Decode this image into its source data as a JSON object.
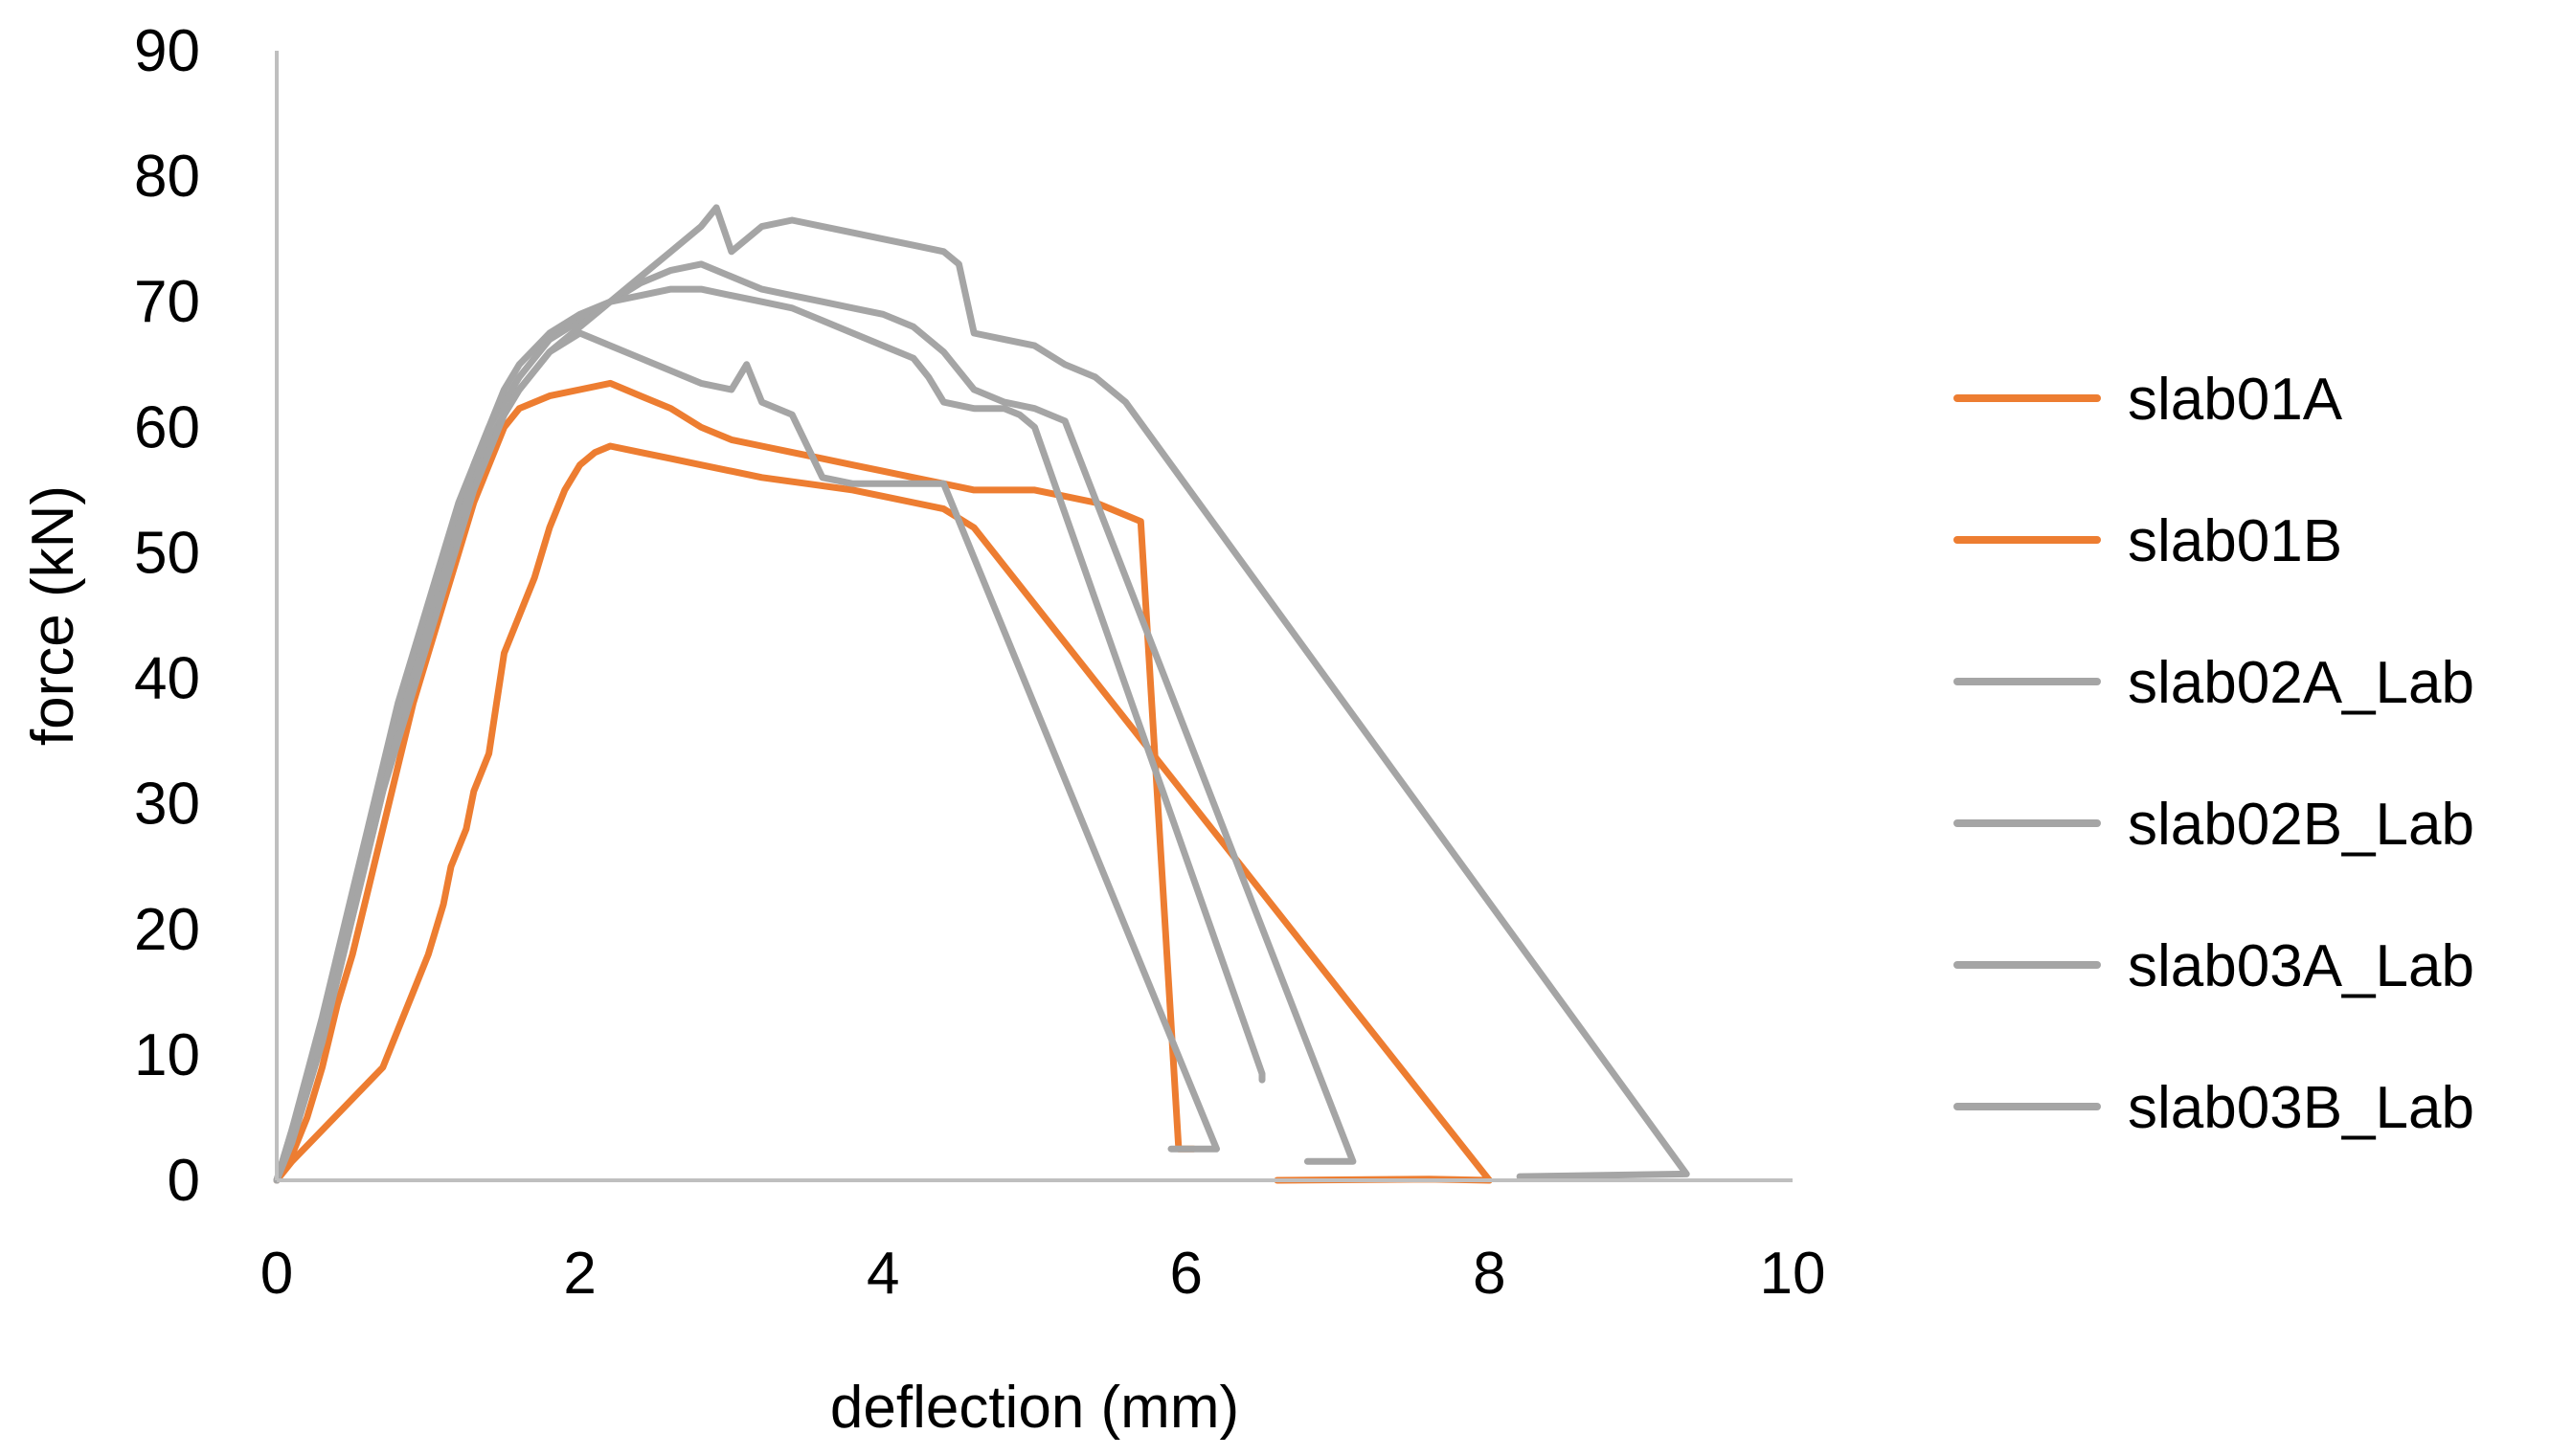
{
  "chart_data": {
    "type": "line",
    "title": "",
    "xlabel": "deflection (mm)",
    "ylabel": "force (kN)",
    "xlim": [
      0,
      10
    ],
    "ylim": [
      0,
      90
    ],
    "xticks": [
      0,
      2,
      4,
      6,
      8,
      10
    ],
    "yticks": [
      0,
      10,
      20,
      30,
      40,
      50,
      60,
      70,
      80,
      90
    ],
    "grid": false,
    "legend_position": "right",
    "series": [
      {
        "name": "slab01A",
        "color": "#ED7D31",
        "points": [
          [
            0,
            0
          ],
          [
            0.1,
            1.5
          ],
          [
            0.3,
            4
          ],
          [
            0.5,
            6.5
          ],
          [
            0.7,
            9
          ],
          [
            0.8,
            12
          ],
          [
            0.9,
            15
          ],
          [
            1.0,
            18
          ],
          [
            1.1,
            22
          ],
          [
            1.15,
            25
          ],
          [
            1.25,
            28
          ],
          [
            1.3,
            31
          ],
          [
            1.4,
            34
          ],
          [
            1.45,
            38
          ],
          [
            1.5,
            42
          ],
          [
            1.6,
            45
          ],
          [
            1.7,
            48
          ],
          [
            1.8,
            52
          ],
          [
            1.9,
            55
          ],
          [
            2.0,
            57
          ],
          [
            2.1,
            58
          ],
          [
            2.2,
            58.5
          ],
          [
            2.4,
            58
          ],
          [
            2.6,
            57.5
          ],
          [
            2.8,
            57
          ],
          [
            3.0,
            56.5
          ],
          [
            3.2,
            56
          ],
          [
            3.5,
            55.5
          ],
          [
            3.8,
            55
          ],
          [
            4.0,
            54.5
          ],
          [
            4.2,
            54
          ],
          [
            4.4,
            53.5
          ],
          [
            4.6,
            52
          ],
          [
            8.0,
            0
          ],
          [
            7.6,
            0.1
          ],
          [
            6.6,
            0
          ]
        ]
      },
      {
        "name": "slab01B",
        "color": "#ED7D31",
        "points": [
          [
            0,
            0
          ],
          [
            0.1,
            2
          ],
          [
            0.2,
            5
          ],
          [
            0.3,
            9
          ],
          [
            0.4,
            14
          ],
          [
            0.5,
            18
          ],
          [
            0.6,
            23
          ],
          [
            0.7,
            28
          ],
          [
            0.8,
            33
          ],
          [
            0.9,
            38
          ],
          [
            1.0,
            42
          ],
          [
            1.1,
            46
          ],
          [
            1.2,
            50
          ],
          [
            1.3,
            54
          ],
          [
            1.4,
            57
          ],
          [
            1.5,
            60
          ],
          [
            1.6,
            61.5
          ],
          [
            1.8,
            62.5
          ],
          [
            2.0,
            63
          ],
          [
            2.2,
            63.5
          ],
          [
            2.4,
            62.5
          ],
          [
            2.6,
            61.5
          ],
          [
            2.8,
            60
          ],
          [
            3.0,
            59
          ],
          [
            3.2,
            58.5
          ],
          [
            3.4,
            58
          ],
          [
            3.6,
            57.5
          ],
          [
            3.8,
            57
          ],
          [
            4.0,
            56.5
          ],
          [
            4.2,
            56
          ],
          [
            4.4,
            55.5
          ],
          [
            4.6,
            55
          ],
          [
            4.8,
            55
          ],
          [
            5.0,
            55
          ],
          [
            5.2,
            54.5
          ],
          [
            5.4,
            54
          ],
          [
            5.6,
            53
          ],
          [
            5.7,
            52.5
          ],
          [
            5.95,
            2.5
          ],
          [
            6.05,
            2.5
          ]
        ]
      },
      {
        "name": "slab02A_Lab",
        "color": "#A5A5A5",
        "points": [
          [
            0,
            0
          ],
          [
            0.1,
            4
          ],
          [
            0.2,
            8
          ],
          [
            0.3,
            12
          ],
          [
            0.4,
            17
          ],
          [
            0.5,
            22
          ],
          [
            0.6,
            27
          ],
          [
            0.7,
            32
          ],
          [
            0.8,
            37
          ],
          [
            0.9,
            41
          ],
          [
            1.0,
            45
          ],
          [
            1.1,
            49
          ],
          [
            1.2,
            53
          ],
          [
            1.3,
            57
          ],
          [
            1.4,
            60
          ],
          [
            1.5,
            62
          ],
          [
            1.6,
            64
          ],
          [
            1.8,
            67
          ],
          [
            2.0,
            68.5
          ],
          [
            2.2,
            70
          ],
          [
            2.4,
            71.5
          ],
          [
            2.6,
            72.5
          ],
          [
            2.8,
            73
          ],
          [
            3.0,
            72
          ],
          [
            3.2,
            71
          ],
          [
            3.4,
            70.5
          ],
          [
            3.6,
            70
          ],
          [
            3.8,
            69.5
          ],
          [
            4.0,
            69
          ],
          [
            4.2,
            68
          ],
          [
            4.4,
            66
          ],
          [
            4.6,
            63
          ],
          [
            4.8,
            62
          ],
          [
            5.0,
            61.5
          ],
          [
            5.2,
            60.5
          ],
          [
            7.1,
            1.5
          ],
          [
            6.8,
            1.5
          ]
        ]
      },
      {
        "name": "slab02B_Lab",
        "color": "#A5A5A5",
        "points": [
          [
            0,
            0
          ],
          [
            0.1,
            3
          ],
          [
            0.2,
            7
          ],
          [
            0.3,
            11
          ],
          [
            0.4,
            16
          ],
          [
            0.5,
            21
          ],
          [
            0.6,
            26
          ],
          [
            0.7,
            31
          ],
          [
            0.8,
            36
          ],
          [
            0.9,
            40
          ],
          [
            1.0,
            44
          ],
          [
            1.1,
            48
          ],
          [
            1.2,
            52
          ],
          [
            1.3,
            56
          ],
          [
            1.4,
            59
          ],
          [
            1.5,
            61
          ],
          [
            1.6,
            63
          ],
          [
            1.8,
            66
          ],
          [
            2.0,
            68
          ],
          [
            2.2,
            70
          ],
          [
            2.4,
            72
          ],
          [
            2.6,
            74
          ],
          [
            2.8,
            76
          ],
          [
            2.9,
            77.5
          ],
          [
            3.0,
            74
          ],
          [
            3.2,
            76
          ],
          [
            3.4,
            76.5
          ],
          [
            3.6,
            76
          ],
          [
            3.8,
            75.5
          ],
          [
            4.0,
            75
          ],
          [
            4.2,
            74.5
          ],
          [
            4.4,
            74
          ],
          [
            4.5,
            73
          ],
          [
            4.6,
            67.5
          ],
          [
            4.8,
            67
          ],
          [
            5.0,
            66.5
          ],
          [
            5.2,
            65
          ],
          [
            5.4,
            64
          ],
          [
            5.6,
            62
          ],
          [
            9.3,
            0.5
          ],
          [
            8.2,
            0.3
          ]
        ]
      },
      {
        "name": "slab03A_Lab",
        "color": "#A5A5A5",
        "points": [
          [
            0,
            0
          ],
          [
            0.1,
            3.5
          ],
          [
            0.2,
            7.5
          ],
          [
            0.3,
            12
          ],
          [
            0.4,
            16
          ],
          [
            0.5,
            21
          ],
          [
            0.6,
            26
          ],
          [
            0.7,
            31
          ],
          [
            0.8,
            35
          ],
          [
            0.9,
            39
          ],
          [
            1.0,
            43
          ],
          [
            1.1,
            47
          ],
          [
            1.2,
            51
          ],
          [
            1.3,
            55
          ],
          [
            1.4,
            58
          ],
          [
            1.5,
            61
          ],
          [
            1.6,
            63
          ],
          [
            1.8,
            66
          ],
          [
            2.0,
            67.5
          ],
          [
            2.2,
            66.5
          ],
          [
            2.4,
            65.5
          ],
          [
            2.6,
            64.5
          ],
          [
            2.8,
            63.5
          ],
          [
            3.0,
            63
          ],
          [
            3.1,
            65
          ],
          [
            3.2,
            62
          ],
          [
            3.4,
            61
          ],
          [
            3.6,
            56
          ],
          [
            3.8,
            55.5
          ],
          [
            4.0,
            55.5
          ],
          [
            4.2,
            55.5
          ],
          [
            4.4,
            55.5
          ],
          [
            6.2,
            2.5
          ],
          [
            5.9,
            2.5
          ]
        ]
      },
      {
        "name": "slab03B_Lab",
        "color": "#A5A5A5",
        "points": [
          [
            0,
            0
          ],
          [
            0.1,
            4
          ],
          [
            0.2,
            8.5
          ],
          [
            0.3,
            13
          ],
          [
            0.4,
            18
          ],
          [
            0.5,
            23
          ],
          [
            0.6,
            28
          ],
          [
            0.7,
            33
          ],
          [
            0.8,
            38
          ],
          [
            0.9,
            42
          ],
          [
            1.0,
            46
          ],
          [
            1.1,
            50
          ],
          [
            1.2,
            54
          ],
          [
            1.3,
            57
          ],
          [
            1.4,
            60
          ],
          [
            1.5,
            63
          ],
          [
            1.6,
            65
          ],
          [
            1.8,
            67.5
          ],
          [
            2.0,
            69
          ],
          [
            2.2,
            70
          ],
          [
            2.4,
            70.5
          ],
          [
            2.6,
            71
          ],
          [
            2.8,
            71
          ],
          [
            3.0,
            70.5
          ],
          [
            3.2,
            70
          ],
          [
            3.4,
            69.5
          ],
          [
            3.6,
            68.5
          ],
          [
            3.8,
            67.5
          ],
          [
            4.0,
            66.5
          ],
          [
            4.2,
            65.5
          ],
          [
            4.3,
            64
          ],
          [
            4.4,
            62
          ],
          [
            4.6,
            61.5
          ],
          [
            4.8,
            61.5
          ],
          [
            4.9,
            61
          ],
          [
            5.0,
            60
          ],
          [
            6.5,
            8.5
          ],
          [
            6.5,
            8
          ]
        ]
      }
    ]
  }
}
